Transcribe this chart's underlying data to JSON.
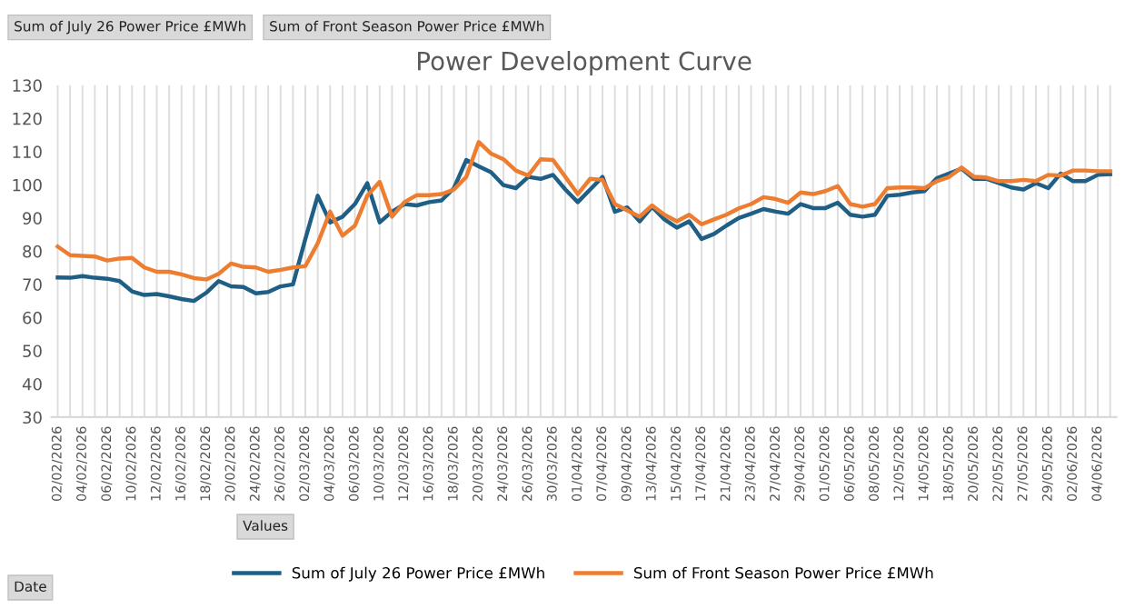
{
  "chart_data": {
    "type": "line",
    "title": "Power Development Curve",
    "categories": [
      "02/02/2026",
      null,
      "04/02/2026",
      null,
      "06/02/2026",
      null,
      "10/02/2026",
      null,
      "12/02/2026",
      null,
      "16/02/2026",
      null,
      "18/02/2026",
      null,
      "20/02/2026",
      null,
      "24/02/2026",
      null,
      "26/02/2026",
      null,
      "02/03/2026",
      null,
      "04/03/2026",
      null,
      "06/03/2026",
      null,
      "10/03/2026",
      null,
      "12/03/2026",
      null,
      "16/03/2026",
      null,
      "18/03/2026",
      null,
      "20/03/2026",
      null,
      "24/03/2026",
      null,
      "26/03/2026",
      null,
      "30/03/2026",
      null,
      "01/04/2026",
      null,
      "07/04/2026",
      null,
      "09/04/2026",
      null,
      "13/04/2026",
      null,
      "15/04/2026",
      null,
      "17/04/2026",
      null,
      "21/04/2026",
      null,
      "23/04/2026",
      null,
      "27/04/2026",
      null,
      "29/04/2026",
      null,
      "01/05/2026",
      null,
      "06/05/2026",
      null,
      "08/05/2026",
      null,
      "12/05/2026",
      null,
      "14/05/2026",
      null,
      "18/05/2026",
      null,
      "20/05/2026",
      null,
      "22/05/2026",
      null,
      "27/05/2026",
      null,
      "29/05/2026",
      null,
      "02/06/2026",
      null,
      "04/06/2026",
      null
    ],
    "series": [
      {
        "name": "Sum of July 26 Power Price £MWh",
        "color": "#1f5f85",
        "values": [
          72.1,
          72,
          72.5,
          72,
          71.7,
          71,
          67.9,
          66.8,
          67.1,
          66.4,
          65.6,
          65,
          67.5,
          71,
          69.4,
          69.2,
          67.3,
          67.7,
          69.4,
          70,
          83.7,
          96.7,
          88.7,
          90.4,
          94.2,
          100.5,
          88.7,
          91.9,
          94.2,
          93.8,
          94.8,
          95.3,
          99,
          107.5,
          105.6,
          103.8,
          99.9,
          99,
          102.4,
          101.8,
          103,
          98.6,
          94.8,
          98.6,
          102.4,
          91.9,
          93.2,
          89,
          93.4,
          89.6,
          87.1,
          89,
          83.7,
          85.2,
          87.7,
          90,
          91.3,
          92.7,
          91.9,
          91.3,
          94.2,
          93,
          93,
          94.6,
          91,
          90.4,
          91,
          96.7,
          97,
          97.7,
          98.1,
          102,
          103.4,
          104.9,
          101.8,
          101.8,
          100.5,
          99.2,
          98.6,
          100.5,
          99,
          103.4,
          101.1,
          101.1,
          103,
          103.2
        ]
      },
      {
        "name": "Sum of Front Season Power Price £MWh",
        "color": "#ed7d31",
        "values": [
          81.4,
          78.8,
          78.6,
          78.4,
          77.2,
          77.8,
          78,
          75.1,
          73.8,
          73.8,
          73,
          71.9,
          71.5,
          73.2,
          76.3,
          75.3,
          75.1,
          73.8,
          74.4,
          75.1,
          75.5,
          82.4,
          91.9,
          84.7,
          87.7,
          96.7,
          100.9,
          90.4,
          94.8,
          96.9,
          96.9,
          97.2,
          98.6,
          102.4,
          112.9,
          109.4,
          107.7,
          104.3,
          102.8,
          107.7,
          107.5,
          102.4,
          97.2,
          101.8,
          101.5,
          94.2,
          92.3,
          90.4,
          93.8,
          91,
          89,
          91,
          88.1,
          89.6,
          91,
          92.9,
          94.2,
          96.3,
          95.7,
          94.6,
          97.7,
          97.2,
          98.1,
          99.6,
          94.2,
          93.4,
          94.2,
          99,
          99.2,
          99.2,
          99,
          101.1,
          102.4,
          105.2,
          102.4,
          102.2,
          101.1,
          101.1,
          101.5,
          101.1,
          103,
          102.8,
          104.3,
          104.3,
          104.1,
          104.1
        ]
      }
    ],
    "ylim": [
      30,
      130
    ],
    "yticks": [
      30,
      40,
      50,
      60,
      70,
      80,
      90,
      100,
      110,
      120,
      130
    ],
    "grid": "x",
    "legend": "bottom",
    "annotations": [
      "Sum of July 26 Power Price £MWh",
      "Sum of Front Season Power Price £MWh",
      "Values",
      "Date"
    ]
  }
}
